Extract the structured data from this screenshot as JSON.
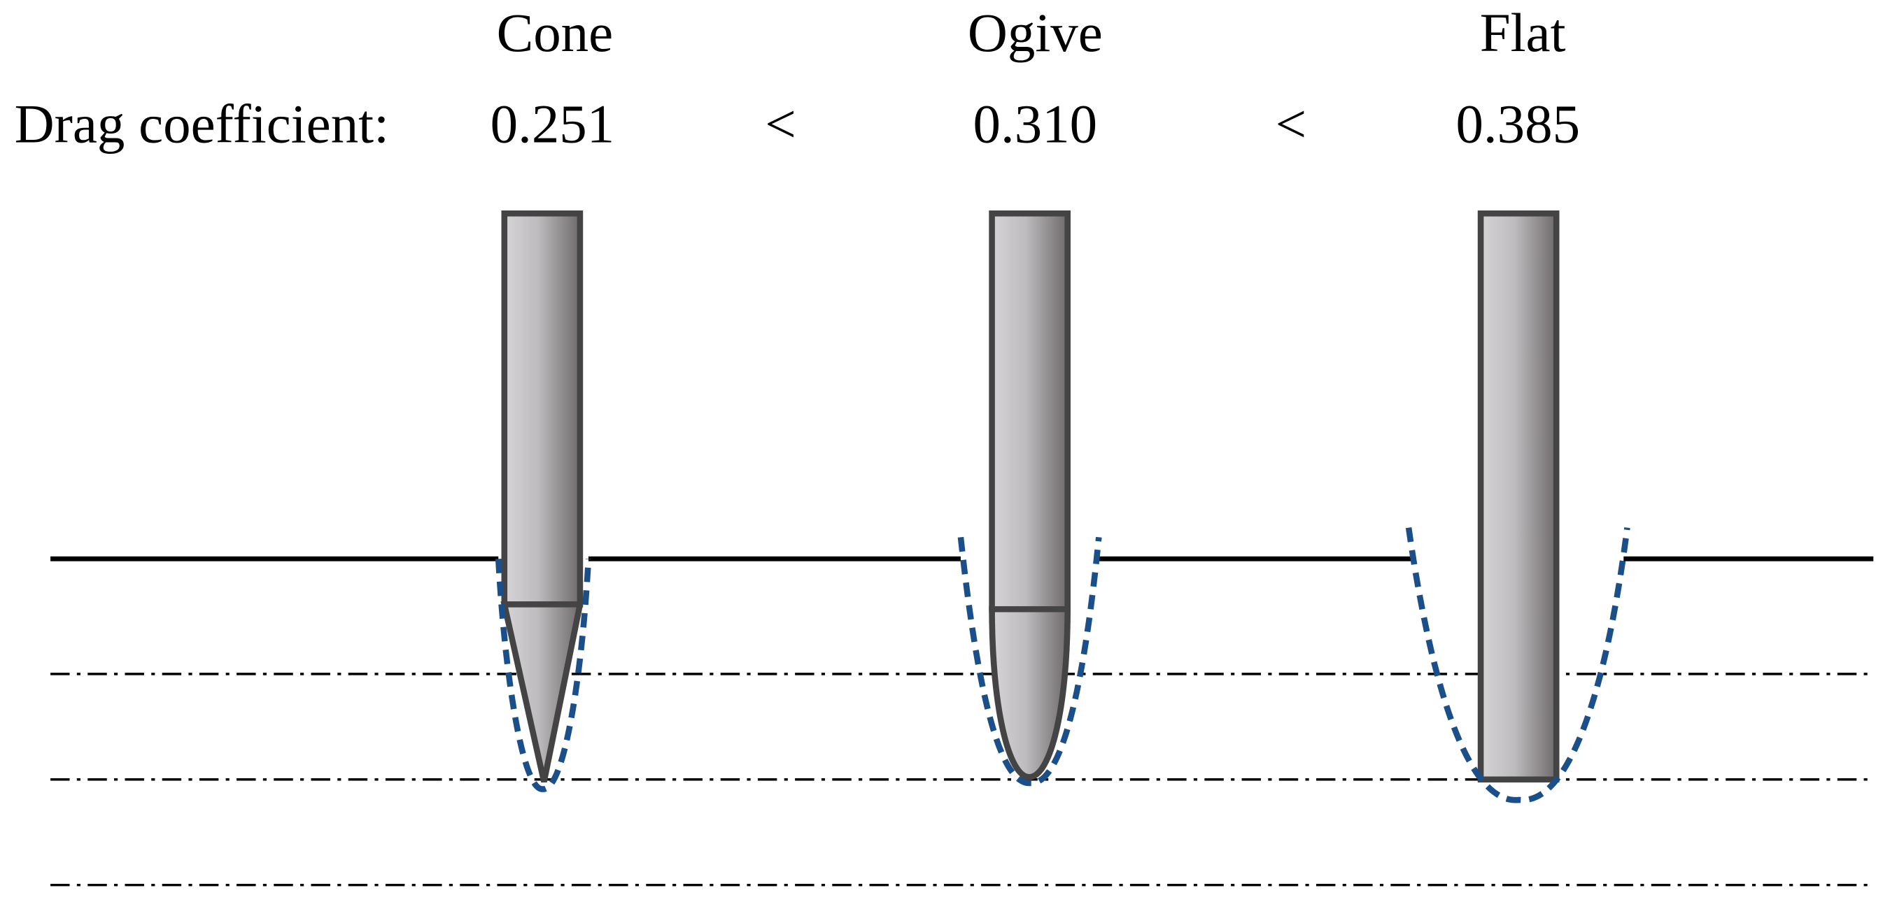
{
  "header": {
    "label": "Drag coefficient:"
  },
  "shapes": [
    {
      "name": "Cone",
      "drag_coefficient": "0.251"
    },
    {
      "name": "Ogive",
      "drag_coefficient": "0.310"
    },
    {
      "name": "Flat",
      "drag_coefficient": "0.385"
    }
  ],
  "comparators": [
    "<",
    "<"
  ]
}
